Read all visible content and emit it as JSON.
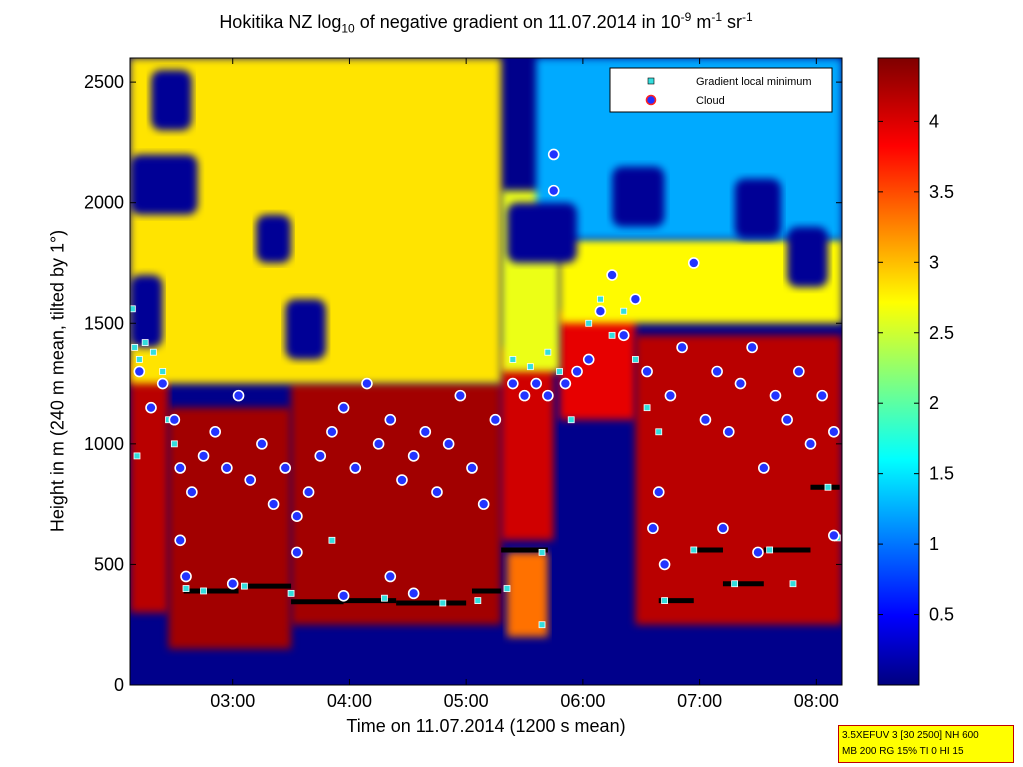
{
  "chart_data": {
    "type": "heatmap",
    "title": {
      "prefix": "Hokitika NZ log",
      "sub": "10",
      "middle": " of negative gradient on 11.07.2014 in 10",
      "sup1": "-9",
      "unit1": " m",
      "sup2": "-1",
      "unit2": " sr",
      "sup3": "-1"
    },
    "xlabel": "Time on 11.07.2014 (1200 s mean)",
    "ylabel": "Height in m (240 m mean, tilted by 1°)",
    "x_range_hours": [
      2.12,
      8.22
    ],
    "y_range_m": [
      0,
      2600
    ],
    "x_ticks": [
      {
        "value": 3,
        "label": "03:00"
      },
      {
        "value": 4,
        "label": "04:00"
      },
      {
        "value": 5,
        "label": "05:00"
      },
      {
        "value": 6,
        "label": "06:00"
      },
      {
        "value": 7,
        "label": "07:00"
      },
      {
        "value": 8,
        "label": "08:00"
      }
    ],
    "y_ticks": [
      {
        "value": 0,
        "label": "0"
      },
      {
        "value": 500,
        "label": "500"
      },
      {
        "value": 1000,
        "label": "1000"
      },
      {
        "value": 1500,
        "label": "1500"
      },
      {
        "value": 2000,
        "label": "2000"
      },
      {
        "value": 2500,
        "label": "2500"
      }
    ],
    "colorbar": {
      "range": [
        0,
        4.45
      ],
      "colormap": "jet",
      "ticks": [
        {
          "value": 0.5,
          "label": "0.5"
        },
        {
          "value": 1,
          "label": "1"
        },
        {
          "value": 1.5,
          "label": "1.5"
        },
        {
          "value": 2,
          "label": "2"
        },
        {
          "value": 2.5,
          "label": "2.5"
        },
        {
          "value": 3,
          "label": "3"
        },
        {
          "value": 3.5,
          "label": "3.5"
        },
        {
          "value": 4,
          "label": "4"
        }
      ]
    },
    "legend": {
      "position": "top-right",
      "entries": [
        {
          "label": "Gradient local minimum",
          "marker": "square",
          "color": "#33dddd"
        },
        {
          "label": "Cloud",
          "marker": "circle",
          "color": "#ff2222"
        }
      ]
    },
    "layers": [
      {
        "t0": 2.12,
        "t1": 2.45,
        "h0": 300,
        "h1": 1350,
        "value": 4.2
      },
      {
        "t0": 2.45,
        "t1": 3.5,
        "h0": 150,
        "h1": 1150,
        "value": 4.3
      },
      {
        "t0": 3.5,
        "t1": 5.3,
        "h0": 250,
        "h1": 1250,
        "value": 4.3
      },
      {
        "t0": 5.3,
        "t1": 5.75,
        "h0": 600,
        "h1": 1400,
        "value": 4.1
      },
      {
        "t0": 5.35,
        "t1": 5.7,
        "h0": 200,
        "h1": 550,
        "value": 3.4
      },
      {
        "t0": 5.8,
        "t1": 6.45,
        "h0": 1100,
        "h1": 1550,
        "value": 4.0
      },
      {
        "t0": 6.45,
        "t1": 8.22,
        "h0": 250,
        "h1": 1450,
        "value": 4.2
      },
      {
        "t0": 2.12,
        "t1": 5.3,
        "h0": 1250,
        "h1": 2600,
        "value": 2.9
      },
      {
        "t0": 5.3,
        "t1": 5.8,
        "h0": 1300,
        "h1": 2050,
        "value": 2.7
      },
      {
        "t0": 5.8,
        "t1": 8.22,
        "h0": 1500,
        "h1": 1850,
        "value": 2.8
      },
      {
        "t0": 5.6,
        "t1": 8.22,
        "h0": 1850,
        "h1": 2600,
        "value": 1.3
      }
    ],
    "low_regions": [
      {
        "t0": 2.12,
        "t1": 2.4,
        "h0": 1400,
        "h1": 1700
      },
      {
        "t0": 2.12,
        "t1": 2.7,
        "h0": 1950,
        "h1": 2200
      },
      {
        "t0": 2.3,
        "t1": 2.65,
        "h0": 2300,
        "h1": 2550
      },
      {
        "t0": 3.2,
        "t1": 3.5,
        "h0": 1750,
        "h1": 1950
      },
      {
        "t0": 3.45,
        "t1": 3.8,
        "h0": 1350,
        "h1": 1600
      },
      {
        "t0": 5.35,
        "t1": 5.95,
        "h0": 1750,
        "h1": 2000
      },
      {
        "t0": 6.25,
        "t1": 6.7,
        "h0": 1900,
        "h1": 2150
      },
      {
        "t0": 7.3,
        "t1": 7.7,
        "h0": 1850,
        "h1": 2100
      },
      {
        "t0": 7.75,
        "t1": 8.1,
        "h0": 1650,
        "h1": 1900
      }
    ],
    "cloud_points": [
      {
        "t": 2.2,
        "h": 1300
      },
      {
        "t": 2.3,
        "h": 1150
      },
      {
        "t": 2.4,
        "h": 1250
      },
      {
        "t": 2.5,
        "h": 1100
      },
      {
        "t": 2.55,
        "h": 900
      },
      {
        "t": 2.65,
        "h": 800
      },
      {
        "t": 2.75,
        "h": 950
      },
      {
        "t": 2.85,
        "h": 1050
      },
      {
        "t": 2.95,
        "h": 900
      },
      {
        "t": 3.05,
        "h": 1200
      },
      {
        "t": 3.15,
        "h": 850
      },
      {
        "t": 3.25,
        "h": 1000
      },
      {
        "t": 3.35,
        "h": 750
      },
      {
        "t": 3.45,
        "h": 900
      },
      {
        "t": 3.55,
        "h": 700
      },
      {
        "t": 3.65,
        "h": 800
      },
      {
        "t": 3.75,
        "h": 950
      },
      {
        "t": 3.85,
        "h": 1050
      },
      {
        "t": 3.95,
        "h": 1150
      },
      {
        "t": 4.05,
        "h": 900
      },
      {
        "t": 4.15,
        "h": 1250
      },
      {
        "t": 4.25,
        "h": 1000
      },
      {
        "t": 4.35,
        "h": 1100
      },
      {
        "t": 4.45,
        "h": 850
      },
      {
        "t": 4.55,
        "h": 950
      },
      {
        "t": 4.65,
        "h": 1050
      },
      {
        "t": 4.75,
        "h": 800
      },
      {
        "t": 4.85,
        "h": 1000
      },
      {
        "t": 4.95,
        "h": 1200
      },
      {
        "t": 5.05,
        "h": 900
      },
      {
        "t": 5.15,
        "h": 750
      },
      {
        "t": 5.25,
        "h": 1100
      },
      {
        "t": 5.4,
        "h": 1250
      },
      {
        "t": 5.5,
        "h": 1200
      },
      {
        "t": 5.6,
        "h": 1250
      },
      {
        "t": 5.7,
        "h": 1200
      },
      {
        "t": 5.75,
        "h": 2200
      },
      {
        "t": 5.75,
        "h": 2050
      },
      {
        "t": 5.85,
        "h": 1250
      },
      {
        "t": 5.95,
        "h": 1300
      },
      {
        "t": 6.05,
        "h": 1350
      },
      {
        "t": 6.15,
        "h": 1550
      },
      {
        "t": 6.25,
        "h": 1700
      },
      {
        "t": 6.35,
        "h": 1450
      },
      {
        "t": 6.45,
        "h": 1600
      },
      {
        "t": 6.55,
        "h": 1300
      },
      {
        "t": 6.65,
        "h": 800
      },
      {
        "t": 6.75,
        "h": 1200
      },
      {
        "t": 6.85,
        "h": 1400
      },
      {
        "t": 6.95,
        "h": 1750
      },
      {
        "t": 7.05,
        "h": 1100
      },
      {
        "t": 7.15,
        "h": 1300
      },
      {
        "t": 7.25,
        "h": 1050
      },
      {
        "t": 7.35,
        "h": 1250
      },
      {
        "t": 7.45,
        "h": 1400
      },
      {
        "t": 7.55,
        "h": 900
      },
      {
        "t": 7.65,
        "h": 1200
      },
      {
        "t": 7.75,
        "h": 1100
      },
      {
        "t": 7.85,
        "h": 1300
      },
      {
        "t": 7.95,
        "h": 1000
      },
      {
        "t": 8.05,
        "h": 1200
      },
      {
        "t": 8.15,
        "h": 1050
      },
      {
        "t": 2.55,
        "h": 600
      },
      {
        "t": 2.6,
        "h": 450
      },
      {
        "t": 3.0,
        "h": 420
      },
      {
        "t": 3.55,
        "h": 550
      },
      {
        "t": 3.95,
        "h": 370
      },
      {
        "t": 4.35,
        "h": 450
      },
      {
        "t": 4.55,
        "h": 380
      },
      {
        "t": 6.6,
        "h": 650
      },
      {
        "t": 6.7,
        "h": 500
      },
      {
        "t": 7.2,
        "h": 650
      },
      {
        "t": 7.5,
        "h": 550
      },
      {
        "t": 8.15,
        "h": 620
      }
    ],
    "gradient_minimum_points": [
      {
        "t": 2.14,
        "h": 1560
      },
      {
        "t": 2.16,
        "h": 1400
      },
      {
        "t": 2.2,
        "h": 1350
      },
      {
        "t": 2.25,
        "h": 1420
      },
      {
        "t": 2.32,
        "h": 1380
      },
      {
        "t": 2.4,
        "h": 1300
      },
      {
        "t": 2.45,
        "h": 1100
      },
      {
        "t": 2.5,
        "h": 1000
      },
      {
        "t": 2.18,
        "h": 950
      },
      {
        "t": 2.6,
        "h": 400
      },
      {
        "t": 2.75,
        "h": 390
      },
      {
        "t": 3.1,
        "h": 410
      },
      {
        "t": 3.5,
        "h": 380
      },
      {
        "t": 3.85,
        "h": 600
      },
      {
        "t": 4.3,
        "h": 360
      },
      {
        "t": 4.8,
        "h": 340
      },
      {
        "t": 5.1,
        "h": 350
      },
      {
        "t": 5.35,
        "h": 400
      },
      {
        "t": 5.65,
        "h": 550
      },
      {
        "t": 5.65,
        "h": 250
      },
      {
        "t": 5.4,
        "h": 1350
      },
      {
        "t": 5.55,
        "h": 1320
      },
      {
        "t": 5.7,
        "h": 1380
      },
      {
        "t": 5.8,
        "h": 1300
      },
      {
        "t": 5.9,
        "h": 1100
      },
      {
        "t": 6.05,
        "h": 1500
      },
      {
        "t": 6.15,
        "h": 1600
      },
      {
        "t": 6.25,
        "h": 1450
      },
      {
        "t": 6.35,
        "h": 1550
      },
      {
        "t": 6.45,
        "h": 1350
      },
      {
        "t": 6.55,
        "h": 1150
      },
      {
        "t": 6.65,
        "h": 1050
      },
      {
        "t": 6.7,
        "h": 350
      },
      {
        "t": 6.95,
        "h": 560
      },
      {
        "t": 7.3,
        "h": 420
      },
      {
        "t": 7.6,
        "h": 560
      },
      {
        "t": 7.8,
        "h": 420
      },
      {
        "t": 8.1,
        "h": 820
      },
      {
        "t": 8.18,
        "h": 610
      }
    ],
    "boundary_layer_segments": [
      {
        "t0": 2.58,
        "t1": 3.05,
        "h": 390
      },
      {
        "t0": 3.1,
        "t1": 3.5,
        "h": 410
      },
      {
        "t0": 3.5,
        "t1": 3.95,
        "h": 345
      },
      {
        "t0": 3.95,
        "t1": 4.4,
        "h": 350
      },
      {
        "t0": 4.4,
        "t1": 5.0,
        "h": 340
      },
      {
        "t0": 5.05,
        "t1": 5.3,
        "h": 390
      },
      {
        "t0": 5.3,
        "t1": 5.7,
        "h": 560
      },
      {
        "t0": 6.65,
        "t1": 6.95,
        "h": 350
      },
      {
        "t0": 6.95,
        "t1": 7.2,
        "h": 560
      },
      {
        "t0": 7.2,
        "t1": 7.55,
        "h": 420
      },
      {
        "t0": 7.55,
        "t1": 7.95,
        "h": 560
      },
      {
        "t0": 7.95,
        "t1": 8.2,
        "h": 820
      }
    ]
  },
  "info_box": {
    "line1": "3.5XEFUV 3 [30 2500] NH 600",
    "line2": "MB 200 RG 15% TI 0 HI 15"
  }
}
